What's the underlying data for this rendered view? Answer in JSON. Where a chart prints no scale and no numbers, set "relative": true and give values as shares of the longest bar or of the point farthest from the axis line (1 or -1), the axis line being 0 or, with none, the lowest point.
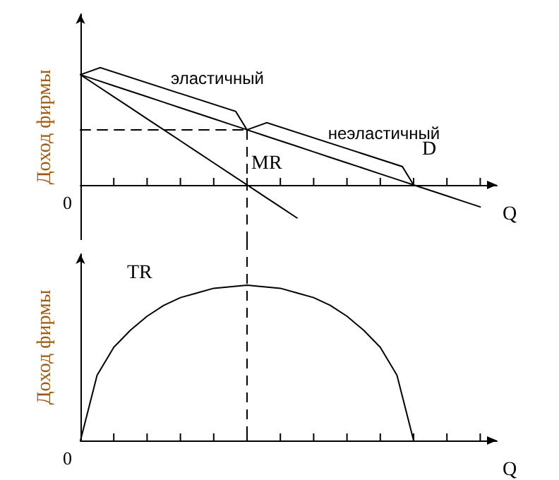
{
  "chart_data": [
    {
      "type": "line",
      "relative": true,
      "xlabel": "Q",
      "ylabel": "Доход фирмы",
      "tick_labels": false,
      "marker": "none",
      "line_style": "solid",
      "annotations": [
        "0",
        "эластичный",
        "неэластичный"
      ],
      "categories": [
        null,
        null,
        null,
        null,
        null,
        null,
        null,
        null,
        null,
        null,
        null,
        null,
        null,
        null,
        null,
        null,
        null,
        null,
        null,
        null,
        null,
        null,
        null,
        null,
        null,
        null
      ],
      "series": [
        {
          "name": "D",
          "color": "#000000",
          "values": [
            1,
            0.95,
            0.9,
            0.85,
            0.8,
            0.75,
            0.7,
            0.65,
            0.6,
            0.55,
            0.5,
            0.45,
            0.4,
            0.35,
            0.3,
            0.25,
            0.2,
            0.15,
            0.1,
            0.05,
            0,
            -0.05,
            -0.1,
            -0.15,
            -0.2,
            null
          ]
        },
        {
          "name": "MR",
          "color": "#000000",
          "values": [
            1,
            0.9,
            0.8,
            0.7,
            0.6,
            0.5,
            0.4,
            0.3,
            0.2,
            0.1,
            0,
            -0.1,
            -0.2,
            -0.3,
            null,
            null,
            null,
            null,
            null,
            null,
            null,
            null,
            null,
            null,
            null,
            null
          ]
        },
        {
          "color": "#000000",
          "line_style": "dashed",
          "values": [
            0.5,
            0.5,
            0.5,
            0.5,
            0.5,
            0.5,
            0.5,
            0.5,
            0.5,
            0.5,
            0.5,
            null,
            null,
            null,
            null,
            null,
            null,
            null,
            null,
            null,
            null,
            null,
            null,
            null,
            null,
            null
          ]
        }
      ]
    },
    {
      "type": "line",
      "relative": true,
      "xlabel": "Q",
      "ylabel": "Доход фирмы",
      "tick_labels": false,
      "marker": "none",
      "line_style": "solid",
      "annotations": [
        "0"
      ],
      "categories": [
        null,
        null,
        null,
        null,
        null,
        null,
        null,
        null,
        null,
        null,
        null,
        null,
        null,
        null,
        null,
        null,
        null,
        null,
        null,
        null,
        null,
        null,
        null,
        null,
        null,
        null
      ],
      "series": [
        {
          "name": "TR",
          "color": "#000000",
          "values": [
            0,
            0.42,
            0.6,
            0.71,
            0.8,
            0.87,
            0.92,
            0.95,
            0.98,
            0.99,
            1,
            0.99,
            0.98,
            0.95,
            0.92,
            0.87,
            0.8,
            0.71,
            0.6,
            0.42,
            0,
            null,
            null,
            null,
            null,
            null
          ]
        }
      ]
    }
  ]
}
